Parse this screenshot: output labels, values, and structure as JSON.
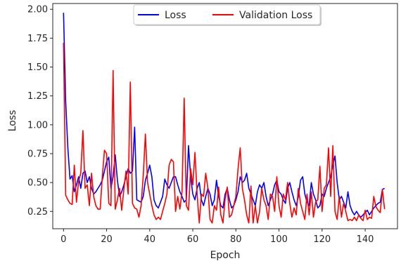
{
  "chart_data": {
    "type": "line",
    "title": "",
    "xlabel": "Epoch",
    "ylabel": "Loss",
    "xlim": [
      -5,
      155
    ],
    "ylim": [
      0.1,
      2.05
    ],
    "grid": false,
    "legend_position": "top-center",
    "xticks": [
      0,
      20,
      40,
      60,
      80,
      100,
      120,
      140
    ],
    "yticks": [
      0.25,
      0.5,
      0.75,
      1.0,
      1.25,
      1.5,
      1.75,
      2.0
    ],
    "xtick_labels": [
      "0",
      "20",
      "40",
      "60",
      "80",
      "100",
      "120",
      "140"
    ],
    "ytick_labels": [
      "0.25",
      "0.50",
      "0.75",
      "1.00",
      "1.25",
      "1.50",
      "1.75",
      "2.00"
    ],
    "series": [
      {
        "name": "Loss",
        "color": "#0000ff",
        "values": [
          1.97,
          1.2,
          0.8,
          0.53,
          0.56,
          0.42,
          0.48,
          0.55,
          0.45,
          0.58,
          0.6,
          0.5,
          0.55,
          0.45,
          0.4,
          0.42,
          0.45,
          0.48,
          0.52,
          0.6,
          0.68,
          0.72,
          0.45,
          0.55,
          0.74,
          0.52,
          0.38,
          0.42,
          0.48,
          0.55,
          0.62,
          0.58,
          0.6,
          0.98,
          0.35,
          0.34,
          0.33,
          0.38,
          0.52,
          0.58,
          0.65,
          0.55,
          0.35,
          0.3,
          0.28,
          0.33,
          0.38,
          0.53,
          0.48,
          0.45,
          0.5,
          0.55,
          0.55,
          0.48,
          0.42,
          0.38,
          0.33,
          0.35,
          0.82,
          0.55,
          0.4,
          0.35,
          0.45,
          0.5,
          0.35,
          0.3,
          0.38,
          0.45,
          0.4,
          0.3,
          0.35,
          0.52,
          0.38,
          0.3,
          0.28,
          0.4,
          0.45,
          0.35,
          0.28,
          0.3,
          0.35,
          0.42,
          0.55,
          0.5,
          0.52,
          0.58,
          0.45,
          0.4,
          0.35,
          0.3,
          0.42,
          0.48,
          0.45,
          0.5,
          0.38,
          0.3,
          0.35,
          0.4,
          0.48,
          0.52,
          0.42,
          0.4,
          0.35,
          0.32,
          0.45,
          0.5,
          0.42,
          0.35,
          0.3,
          0.38,
          0.52,
          0.55,
          0.4,
          0.33,
          0.3,
          0.5,
          0.4,
          0.35,
          0.28,
          0.3,
          0.4,
          0.38,
          0.45,
          0.5,
          0.55,
          0.65,
          0.73,
          0.5,
          0.35,
          0.38,
          0.33,
          0.28,
          0.42,
          0.3,
          0.25,
          0.22,
          0.25,
          0.22,
          0.2,
          0.22,
          0.24,
          0.26,
          0.22,
          0.25,
          0.28,
          0.3,
          0.32,
          0.33,
          0.44,
          0.45
        ]
      },
      {
        "name": "Validation Loss",
        "color": "#ff0000",
        "values": [
          1.71,
          0.39,
          0.35,
          0.32,
          0.31,
          0.65,
          0.33,
          0.51,
          0.58,
          0.95,
          0.45,
          0.48,
          0.3,
          0.58,
          0.38,
          0.3,
          0.27,
          0.27,
          0.55,
          0.78,
          0.75,
          0.32,
          0.3,
          1.47,
          0.27,
          0.35,
          0.45,
          0.26,
          0.44,
          0.6,
          0.4,
          1.37,
          0.32,
          0.28,
          0.27,
          0.2,
          0.3,
          0.56,
          0.92,
          0.5,
          0.4,
          0.3,
          0.22,
          0.18,
          0.2,
          0.18,
          0.25,
          0.32,
          0.4,
          0.65,
          0.7,
          0.68,
          0.25,
          0.38,
          0.27,
          0.42,
          1.23,
          0.3,
          0.26,
          0.62,
          0.48,
          0.76,
          0.4,
          0.15,
          0.4,
          0.38,
          0.58,
          0.45,
          0.18,
          0.15,
          0.3,
          0.26,
          0.46,
          0.22,
          0.15,
          0.36,
          0.46,
          0.2,
          0.22,
          0.3,
          0.38,
          0.62,
          0.8,
          0.45,
          0.35,
          0.22,
          0.15,
          0.47,
          0.15,
          0.3,
          0.15,
          0.25,
          0.45,
          0.35,
          0.3,
          0.18,
          0.4,
          0.38,
          0.25,
          0.55,
          0.3,
          0.2,
          0.4,
          0.35,
          0.5,
          0.32,
          0.2,
          0.28,
          0.22,
          0.45,
          0.32,
          0.25,
          0.18,
          0.4,
          0.22,
          0.42,
          0.2,
          0.33,
          0.35,
          0.64,
          0.25,
          0.45,
          0.48,
          0.8,
          0.38,
          0.82,
          0.25,
          0.18,
          0.38,
          0.2,
          0.32,
          0.25,
          0.17,
          0.18,
          0.17,
          0.2,
          0.17,
          0.22,
          0.19,
          0.17,
          0.26,
          0.18,
          0.2,
          0.19,
          0.38,
          0.29,
          0.26,
          0.24,
          0.44,
          0.27
        ]
      }
    ]
  }
}
